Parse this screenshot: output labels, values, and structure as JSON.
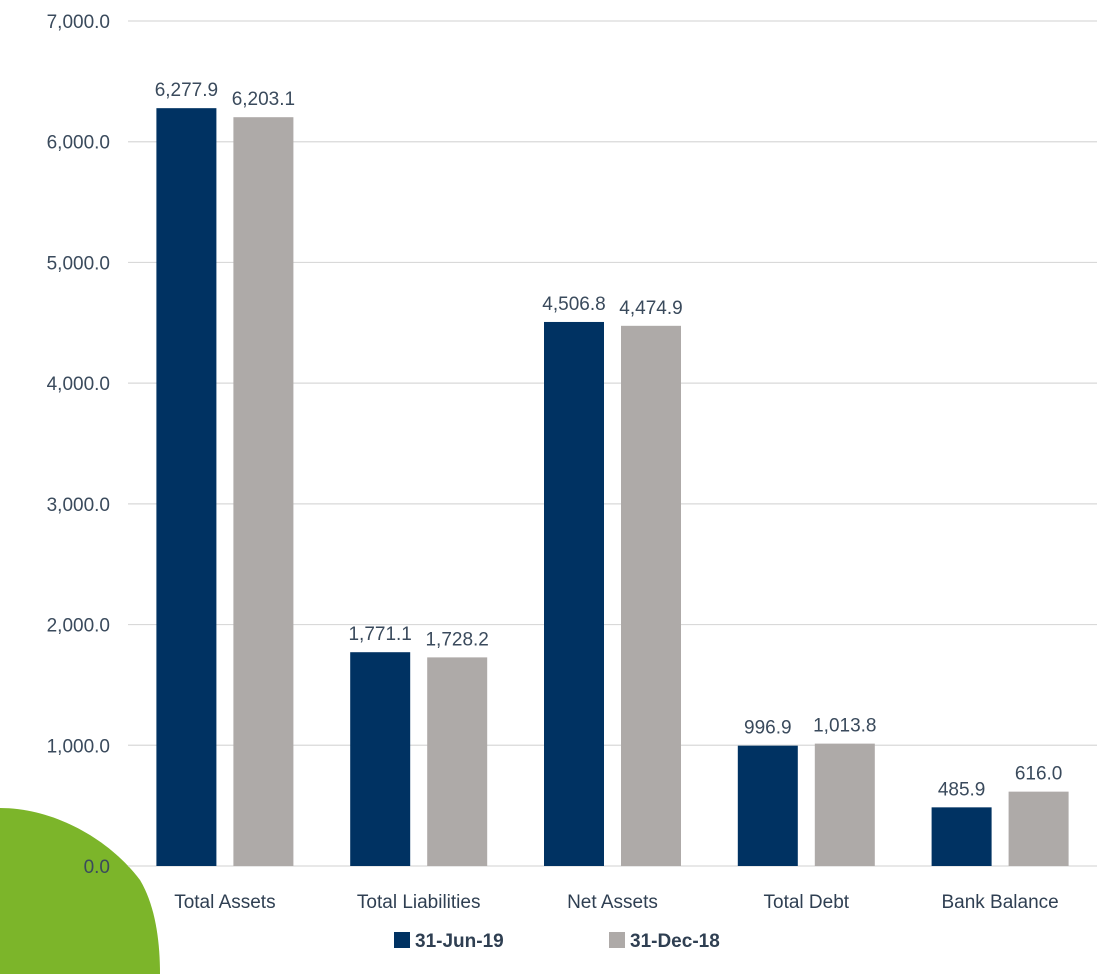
{
  "chart_data": {
    "type": "bar",
    "categories": [
      "Total Assets",
      "Total Liabilities",
      "Net Assets",
      "Total Debt",
      "Bank Balance"
    ],
    "series": [
      {
        "name": "31-Jun-19",
        "values": [
          6277.9,
          1771.1,
          4506.8,
          996.9,
          485.9
        ],
        "labels": [
          "6,277.9",
          "1,771.1",
          "4,506.8",
          "996.9",
          "485.9"
        ]
      },
      {
        "name": "31-Dec-18",
        "values": [
          6203.1,
          1728.2,
          4474.9,
          1013.8,
          616.0
        ],
        "labels": [
          "6,203.1",
          "1,728.2",
          "4,474.9",
          "1,013.8",
          "616.0"
        ]
      }
    ],
    "y_ticks": [
      "0.0",
      "1,000.0",
      "2,000.0",
      "3,000.0",
      "4,000.0",
      "5,000.0",
      "6,000.0",
      "7,000.0"
    ],
    "ylim": [
      0,
      7000
    ],
    "grid": true,
    "legend_position": "bottom",
    "colors": {
      "series_1": "#003262",
      "series_2": "#aeaaa8",
      "grid": "#d9d9d9",
      "accent_shape": "#7cb52a"
    }
  }
}
